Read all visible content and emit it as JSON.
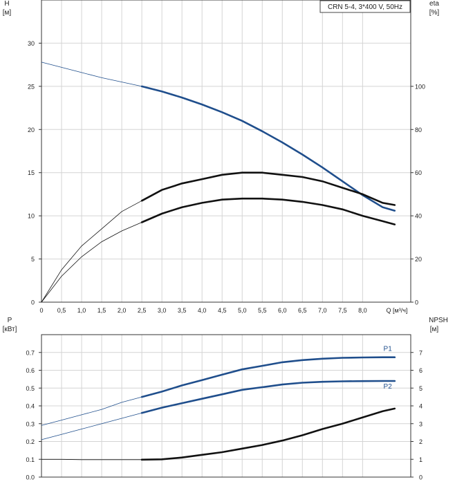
{
  "chart_data": [
    {
      "type": "line",
      "legend_box": "CRN 5-4, 3*400 V, 50Hz",
      "left_axis": {
        "label_line1": "H",
        "label_line2": "[м]",
        "ticks": [
          "0",
          "5",
          "10",
          "15",
          "20",
          "25",
          "30"
        ],
        "ylim": [
          0,
          35
        ]
      },
      "right_axis": {
        "label_line1": "eta",
        "label_line2": "[%]",
        "ticks": [
          "0",
          "20",
          "40",
          "60",
          "80",
          "100"
        ],
        "ylim": [
          0,
          140
        ]
      },
      "x_axis": {
        "label": "Q [м³/ч]",
        "ticks": [
          "0",
          "0,5",
          "1,0",
          "1,5",
          "2,0",
          "2,5",
          "3,0",
          "3,5",
          "4,0",
          "4,5",
          "5,0",
          "5,5",
          "6,0",
          "6,5",
          "7,0",
          "7,5",
          "8,0"
        ],
        "xlim": [
          0,
          9.2
        ]
      },
      "grid": true,
      "series": [
        {
          "role": "head",
          "color": "#1f4e8c",
          "axis": "left",
          "highlight_from": 2.5,
          "x": [
            0,
            0.5,
            1,
            1.5,
            2,
            2.5,
            3,
            3.5,
            4,
            4.5,
            5,
            5.5,
            6,
            6.5,
            7,
            7.5,
            8,
            8.5,
            8.8
          ],
          "values": [
            27.8,
            27.2,
            26.6,
            26.0,
            25.5,
            25.0,
            24.4,
            23.7,
            22.9,
            22.0,
            21.0,
            19.8,
            18.5,
            17.1,
            15.6,
            14.0,
            12.4,
            11.0,
            10.6
          ]
        },
        {
          "role": "efficiency",
          "color": "#111111",
          "axis": "right",
          "highlight_from": 2.5,
          "x": [
            0,
            0.5,
            1,
            1.5,
            2,
            2.5,
            3,
            3.5,
            4,
            4.5,
            5,
            5.5,
            6,
            6.5,
            7,
            7.5,
            8,
            8.5,
            8.8
          ],
          "values": [
            0,
            15,
            26,
            34,
            42,
            47,
            52,
            55,
            57,
            59,
            60,
            60,
            59,
            58,
            56,
            53,
            50,
            46,
            45
          ]
        },
        {
          "role": "efficiency-2",
          "color": "#111111",
          "axis": "right",
          "highlight_from": 2.5,
          "x": [
            0,
            0.5,
            1,
            1.5,
            2,
            2.5,
            3,
            3.5,
            4,
            4.5,
            5,
            5.5,
            6,
            6.5,
            7,
            7.5,
            8,
            8.5,
            8.8
          ],
          "values": [
            0,
            12,
            21,
            28,
            33,
            37,
            41,
            44,
            46,
            47.5,
            48,
            48,
            47.5,
            46.5,
            45,
            43,
            40,
            37.5,
            36
          ]
        }
      ]
    },
    {
      "type": "line",
      "left_axis": {
        "label_line1": "P",
        "label_line2": "[кВт]",
        "ticks": [
          "0.0",
          "0.1",
          "0.2",
          "0.3",
          "0.4",
          "0.5",
          "0.6",
          "0.7"
        ],
        "ylim": [
          0,
          0.8
        ]
      },
      "right_axis": {
        "label_line1": "NPSH",
        "label_line2": "[м]",
        "ticks": [
          "0",
          "1",
          "2",
          "3",
          "4",
          "5",
          "6",
          "7"
        ],
        "ylim": [
          0,
          8
        ]
      },
      "x_axis": {
        "xlim": [
          0,
          9.2
        ]
      },
      "grid": true,
      "series": [
        {
          "name": "P1",
          "color": "#1f4e8c",
          "axis": "left",
          "highlight_from": 2.5,
          "x": [
            0,
            0.5,
            1,
            1.5,
            2,
            2.5,
            3,
            3.5,
            4,
            4.5,
            5,
            5.5,
            6,
            6.5,
            7,
            7.5,
            8,
            8.5,
            8.8
          ],
          "values": [
            0.29,
            0.32,
            0.35,
            0.38,
            0.42,
            0.45,
            0.48,
            0.515,
            0.545,
            0.575,
            0.605,
            0.625,
            0.645,
            0.657,
            0.665,
            0.67,
            0.672,
            0.673,
            0.673
          ]
        },
        {
          "name": "P2",
          "color": "#1f4e8c",
          "axis": "left",
          "highlight_from": 2.5,
          "x": [
            0,
            0.5,
            1,
            1.5,
            2,
            2.5,
            3,
            3.5,
            4,
            4.5,
            5,
            5.5,
            6,
            6.5,
            7,
            7.5,
            8,
            8.5,
            8.8
          ],
          "values": [
            0.21,
            0.24,
            0.27,
            0.3,
            0.33,
            0.36,
            0.39,
            0.415,
            0.44,
            0.465,
            0.49,
            0.505,
            0.52,
            0.53,
            0.535,
            0.538,
            0.539,
            0.54,
            0.54
          ]
        },
        {
          "role": "npsh",
          "color": "#111111",
          "axis": "right",
          "highlight_from": 2.5,
          "x": [
            0,
            0.5,
            1,
            1.5,
            2,
            2.5,
            3,
            3.5,
            4,
            4.5,
            5,
            5.5,
            6,
            6.5,
            7,
            7.5,
            8,
            8.5,
            8.8
          ],
          "values": [
            1.0,
            1.0,
            0.98,
            0.98,
            0.98,
            0.98,
            1.0,
            1.1,
            1.25,
            1.4,
            1.6,
            1.8,
            2.05,
            2.35,
            2.7,
            3.0,
            3.35,
            3.7,
            3.85
          ]
        }
      ]
    }
  ]
}
